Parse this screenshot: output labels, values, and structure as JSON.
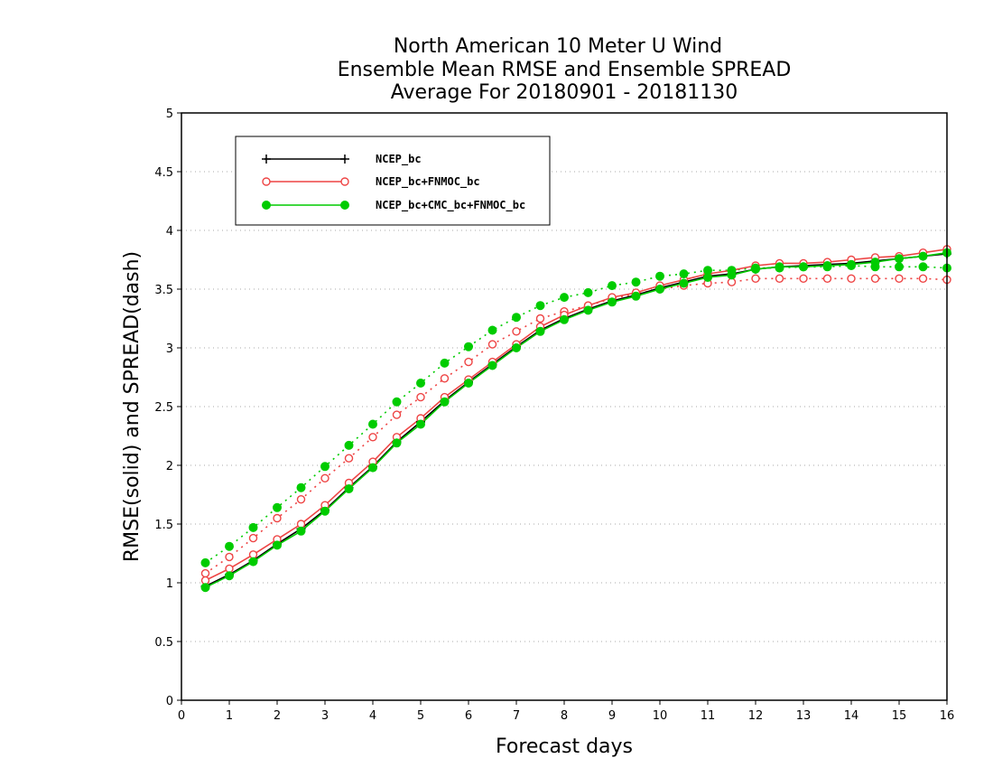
{
  "chart_data": {
    "type": "line",
    "title_lines": [
      "North American 10 Meter U Wind",
      "Ensemble Mean RMSE and Ensemble SPREAD",
      "Average For 20180901 - 20181130"
    ],
    "xlabel": "Forecast days",
    "ylabel": "RMSE(solid) and SPREAD(dash)",
    "xlim": [
      0,
      16
    ],
    "ylim": [
      0,
      5
    ],
    "x_ticks": [
      "0",
      "1",
      "2",
      "3",
      "4",
      "5",
      "6",
      "7",
      "8",
      "9",
      "10",
      "11",
      "12",
      "13",
      "14",
      "15",
      "16"
    ],
    "y_ticks": [
      "0",
      "0.5",
      "1",
      "1.5",
      "2",
      "2.5",
      "3",
      "3.5",
      "4",
      "4.5",
      "5"
    ],
    "grid": true,
    "legend_position": "top-left",
    "x": [
      0.5,
      1,
      1.5,
      2,
      2.5,
      3,
      3.5,
      4,
      4.5,
      5,
      5.5,
      6,
      6.5,
      7,
      7.5,
      8,
      8.5,
      9,
      9.5,
      10,
      10.5,
      11,
      11.5,
      12,
      12.5,
      13,
      13.5,
      14,
      14.5,
      15,
      15.5,
      16
    ],
    "series": [
      {
        "name": "NCEP_bc",
        "color": "#000000",
        "marker": "plus",
        "rmse": [
          0.97,
          1.07,
          1.19,
          1.33,
          1.46,
          1.62,
          1.81,
          1.99,
          2.2,
          2.37,
          2.55,
          2.71,
          2.86,
          3.01,
          3.15,
          3.25,
          3.33,
          3.4,
          3.45,
          3.51,
          3.56,
          3.61,
          3.63,
          3.67,
          3.69,
          3.7,
          3.71,
          3.72,
          3.74,
          3.76,
          3.78,
          3.8
        ],
        "spread": []
      },
      {
        "name": "NCEP_bc+FNMOC_bc",
        "color": "#ee4444",
        "marker": "open-circle",
        "rmse": [
          1.02,
          1.12,
          1.24,
          1.37,
          1.5,
          1.66,
          1.85,
          2.03,
          2.24,
          2.4,
          2.58,
          2.73,
          2.88,
          3.03,
          3.18,
          3.28,
          3.36,
          3.43,
          3.47,
          3.53,
          3.58,
          3.63,
          3.66,
          3.7,
          3.72,
          3.72,
          3.73,
          3.75,
          3.77,
          3.78,
          3.81,
          3.84
        ],
        "spread": [
          1.08,
          1.22,
          1.38,
          1.55,
          1.71,
          1.89,
          2.06,
          2.24,
          2.43,
          2.58,
          2.74,
          2.88,
          3.03,
          3.14,
          3.25,
          3.31,
          3.36,
          3.42,
          3.46,
          3.5,
          3.53,
          3.55,
          3.56,
          3.59,
          3.59,
          3.59,
          3.59,
          3.59,
          3.59,
          3.59,
          3.59,
          3.58
        ]
      },
      {
        "name": "NCEP_bc+CMC_bc+FNMOC_bc",
        "color": "#00cc00",
        "marker": "filled-circle",
        "rmse": [
          0.96,
          1.06,
          1.18,
          1.32,
          1.44,
          1.61,
          1.8,
          1.98,
          2.19,
          2.35,
          2.54,
          2.7,
          2.85,
          3.0,
          3.14,
          3.24,
          3.32,
          3.39,
          3.44,
          3.5,
          3.55,
          3.6,
          3.62,
          3.67,
          3.69,
          3.69,
          3.7,
          3.71,
          3.73,
          3.76,
          3.78,
          3.81
        ],
        "spread": [
          1.17,
          1.31,
          1.47,
          1.64,
          1.81,
          1.99,
          2.17,
          2.35,
          2.54,
          2.7,
          2.87,
          3.01,
          3.15,
          3.26,
          3.36,
          3.43,
          3.47,
          3.53,
          3.56,
          3.61,
          3.63,
          3.66,
          3.66,
          3.68,
          3.68,
          3.69,
          3.69,
          3.7,
          3.69,
          3.69,
          3.69,
          3.68
        ]
      }
    ]
  }
}
